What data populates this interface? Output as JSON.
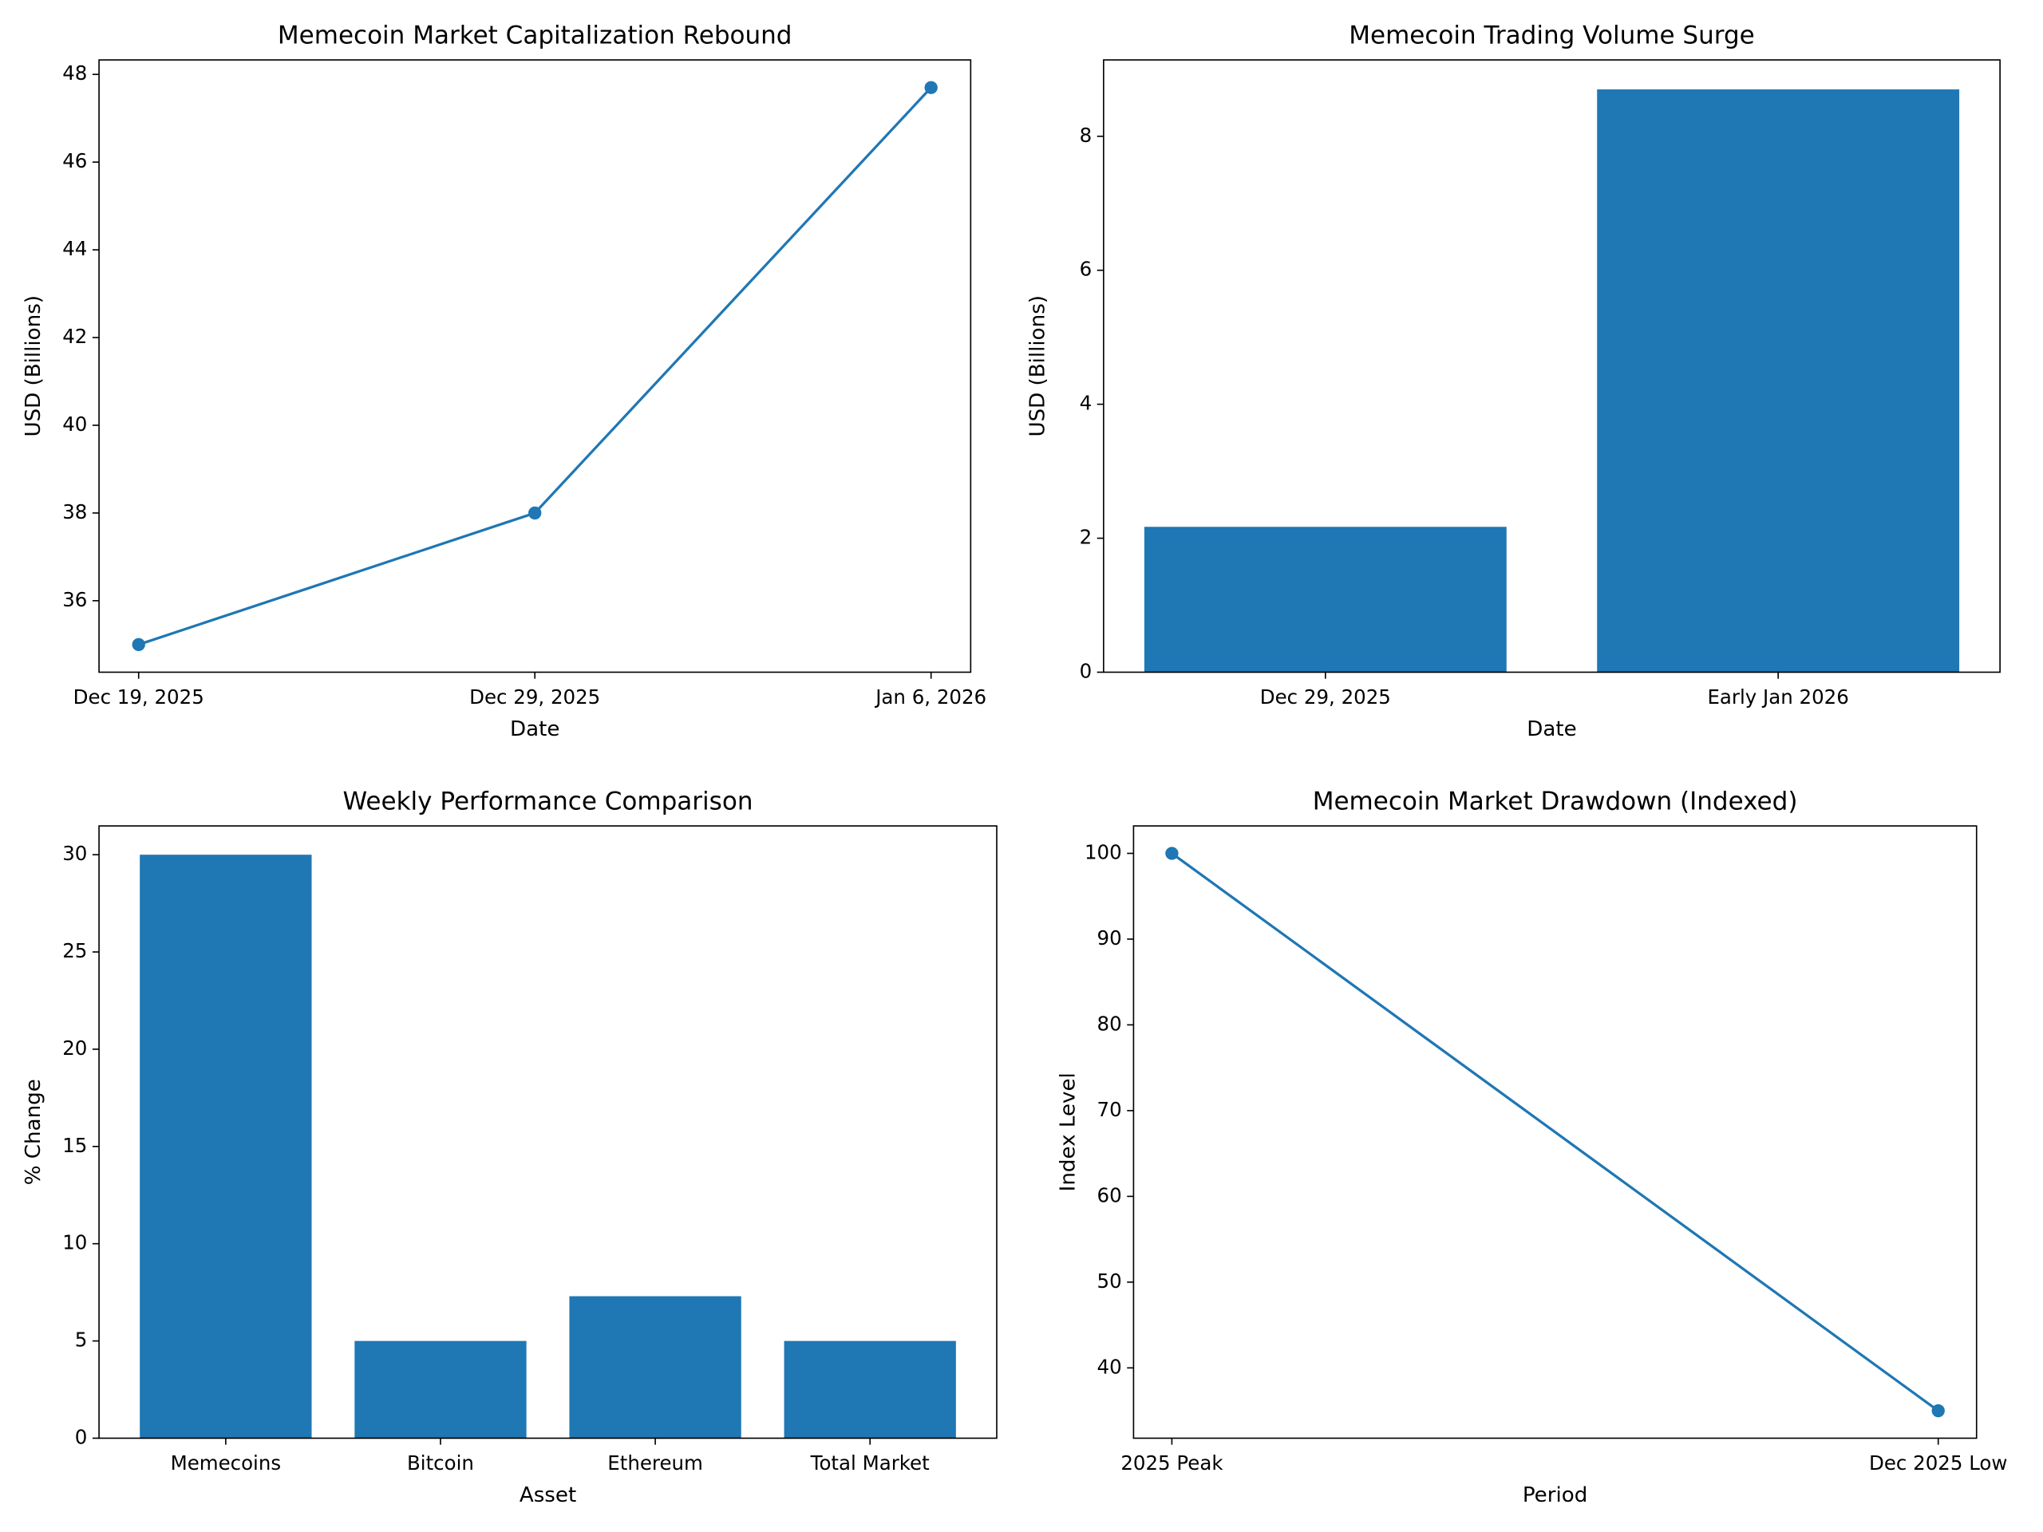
{
  "chart_data": [
    {
      "type": "line",
      "title": "Memecoin Market Capitalization Rebound",
      "x_label": "Date",
      "y_label": "USD (Billions)",
      "categories": [
        "Dec 19, 2025",
        "Dec 29, 2025",
        "Jan 6, 2026"
      ],
      "values": [
        35,
        38,
        47.7
      ],
      "color": "#1f77b4",
      "ylim": [
        34.37,
        48.33
      ],
      "yticks": [
        36,
        38,
        40,
        42,
        44,
        46,
        48
      ]
    },
    {
      "type": "bar",
      "title": "Memecoin Trading Volume Surge",
      "x_label": "Date",
      "y_label": "USD (Billions)",
      "categories": [
        "Dec 29, 2025",
        "Early Jan 2026"
      ],
      "values": [
        2.17,
        8.7
      ],
      "color": "#1f77b4",
      "ylim": [
        0,
        9.14
      ],
      "yticks": [
        0,
        2,
        4,
        6,
        8
      ]
    },
    {
      "type": "bar",
      "title": "Weekly Performance Comparison",
      "x_label": "Asset",
      "y_label": "% Change",
      "categories": [
        "Memecoins",
        "Bitcoin",
        "Ethereum",
        "Total Market"
      ],
      "values": [
        30,
        5,
        7.3,
        5
      ],
      "color": "#1f77b4",
      "ylim": [
        0,
        31.48
      ],
      "yticks": [
        0,
        5,
        10,
        15,
        20,
        25,
        30
      ]
    },
    {
      "type": "line",
      "title": "Memecoin Market Drawdown (Indexed)",
      "x_label": "Period",
      "y_label": "Index Level",
      "categories": [
        "2025 Peak",
        "Dec 2025 Low"
      ],
      "values": [
        100,
        35
      ],
      "color": "#1f77b4",
      "ylim": [
        31.8,
        103.2
      ],
      "yticks": [
        40,
        50,
        60,
        70,
        80,
        90,
        100
      ]
    }
  ]
}
